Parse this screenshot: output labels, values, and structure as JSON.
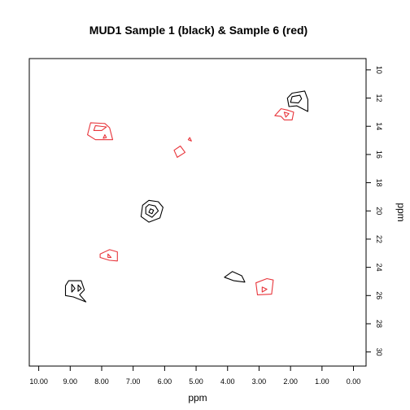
{
  "chart_data": {
    "type": "contour",
    "title": "MUD1 Sample 1 (black) & Sample 6 (red)",
    "xlabel": "ppm",
    "ylabel": "ppm",
    "xlim": [
      10.3,
      -0.4
    ],
    "ylim": [
      9.2,
      31.0
    ],
    "x_ticks": [
      10,
      9,
      8,
      7,
      6,
      5,
      4,
      3,
      2,
      1,
      0
    ],
    "x_tick_labels": [
      "10.00",
      "9.00",
      "8.00",
      "7.00",
      "6.00",
      "5.00",
      "4.00",
      "3.00",
      "2.00",
      "1.00",
      "0.00"
    ],
    "y_ticks": [
      10,
      12,
      14,
      16,
      18,
      20,
      22,
      24,
      26,
      28,
      30
    ],
    "y_tick_labels": [
      "10",
      "12",
      "14",
      "16",
      "18",
      "20",
      "22",
      "24",
      "26",
      "28",
      "30"
    ],
    "series_colors": {
      "sample1": "#000000",
      "sample6": "#e8353b"
    },
    "peaks": [
      {
        "series": "sample1",
        "contours": [
          [
            [
              1.55,
              11.5
            ],
            [
              1.95,
              11.65
            ],
            [
              2.1,
              12.0
            ],
            [
              2.05,
              12.6
            ],
            [
              1.8,
              12.55
            ],
            [
              1.45,
              12.95
            ],
            [
              1.45,
              12.1
            ]
          ],
          [
            [
              1.7,
              11.8
            ],
            [
              1.95,
              11.9
            ],
            [
              2.0,
              12.3
            ],
            [
              1.75,
              12.35
            ],
            [
              1.65,
              12.05
            ]
          ]
        ]
      },
      {
        "series": "sample1",
        "contours": [
          [
            [
              6.5,
              19.25
            ],
            [
              6.2,
              19.35
            ],
            [
              6.05,
              19.75
            ],
            [
              6.15,
              20.5
            ],
            [
              6.5,
              20.8
            ],
            [
              6.75,
              20.4
            ],
            [
              6.7,
              19.6
            ]
          ],
          [
            [
              6.5,
              19.55
            ],
            [
              6.3,
              19.65
            ],
            [
              6.2,
              20.0
            ],
            [
              6.4,
              20.45
            ],
            [
              6.6,
              20.2
            ],
            [
              6.6,
              19.75
            ]
          ],
          [
            [
              6.45,
              19.85
            ],
            [
              6.35,
              19.95
            ],
            [
              6.4,
              20.2
            ],
            [
              6.5,
              20.1
            ]
          ]
        ]
      },
      {
        "series": "sample1",
        "contours": [
          [
            [
              9.05,
              24.95
            ],
            [
              8.65,
              24.95
            ],
            [
              8.55,
              25.6
            ],
            [
              8.7,
              25.95
            ],
            [
              8.5,
              26.45
            ],
            [
              8.9,
              26.1
            ],
            [
              9.15,
              26.0
            ],
            [
              9.15,
              25.3
            ]
          ],
          [
            [
              8.95,
              25.2
            ],
            [
              8.85,
              25.5
            ],
            [
              8.95,
              25.75
            ]
          ],
          [
            [
              8.75,
              25.25
            ],
            [
              8.65,
              25.5
            ],
            [
              8.75,
              25.7
            ]
          ]
        ]
      },
      {
        "series": "sample1",
        "contours": [
          [
            [
              3.85,
              24.3
            ],
            [
              3.55,
              24.6
            ],
            [
              3.45,
              25.05
            ],
            [
              3.8,
              24.95
            ],
            [
              4.1,
              24.7
            ]
          ]
        ]
      },
      {
        "series": "sample6",
        "contours": [
          [
            [
              2.3,
              12.75
            ],
            [
              2.1,
              12.85
            ],
            [
              1.9,
              13.0
            ],
            [
              1.95,
              13.55
            ],
            [
              2.2,
              13.55
            ],
            [
              2.3,
              13.3
            ],
            [
              2.5,
              13.25
            ]
          ],
          [
            [
              2.2,
              13.0
            ],
            [
              2.05,
              13.1
            ],
            [
              2.15,
              13.35
            ]
          ]
        ]
      },
      {
        "series": "sample6",
        "contours": [
          [
            [
              8.35,
              13.75
            ],
            [
              7.9,
              13.8
            ],
            [
              7.75,
              14.1
            ],
            [
              7.65,
              14.95
            ],
            [
              8.2,
              14.95
            ],
            [
              8.45,
              14.6
            ]
          ],
          [
            [
              8.2,
              13.95
            ],
            [
              7.85,
              14.05
            ],
            [
              8.0,
              14.3
            ],
            [
              8.25,
              14.3
            ]
          ],
          [
            [
              7.9,
              14.6
            ],
            [
              7.85,
              14.8
            ],
            [
              7.95,
              14.85
            ]
          ]
        ]
      },
      {
        "series": "sample6",
        "contours": [
          [
            [
              5.5,
              15.4
            ],
            [
              5.35,
              15.85
            ],
            [
              5.6,
              16.2
            ],
            [
              5.7,
              15.7
            ]
          ],
          [
            [
              5.2,
              14.8
            ],
            [
              5.15,
              15.05
            ],
            [
              5.25,
              14.95
            ]
          ]
        ]
      },
      {
        "series": "sample6",
        "contours": [
          [
            [
              7.75,
              22.75
            ],
            [
              7.5,
              22.9
            ],
            [
              7.5,
              23.55
            ],
            [
              7.75,
              23.5
            ],
            [
              8.05,
              23.3
            ],
            [
              8.05,
              23.05
            ]
          ],
          [
            [
              7.8,
              23.05
            ],
            [
              7.7,
              23.3
            ],
            [
              7.8,
              23.3
            ]
          ]
        ]
      },
      {
        "series": "sample6",
        "contours": [
          [
            [
              2.75,
              24.8
            ],
            [
              2.55,
              24.9
            ],
            [
              2.6,
              25.9
            ],
            [
              3.05,
              25.95
            ],
            [
              3.1,
              25.1
            ]
          ],
          [
            [
              2.9,
              25.4
            ],
            [
              2.75,
              25.55
            ],
            [
              2.9,
              25.75
            ]
          ]
        ]
      }
    ]
  }
}
